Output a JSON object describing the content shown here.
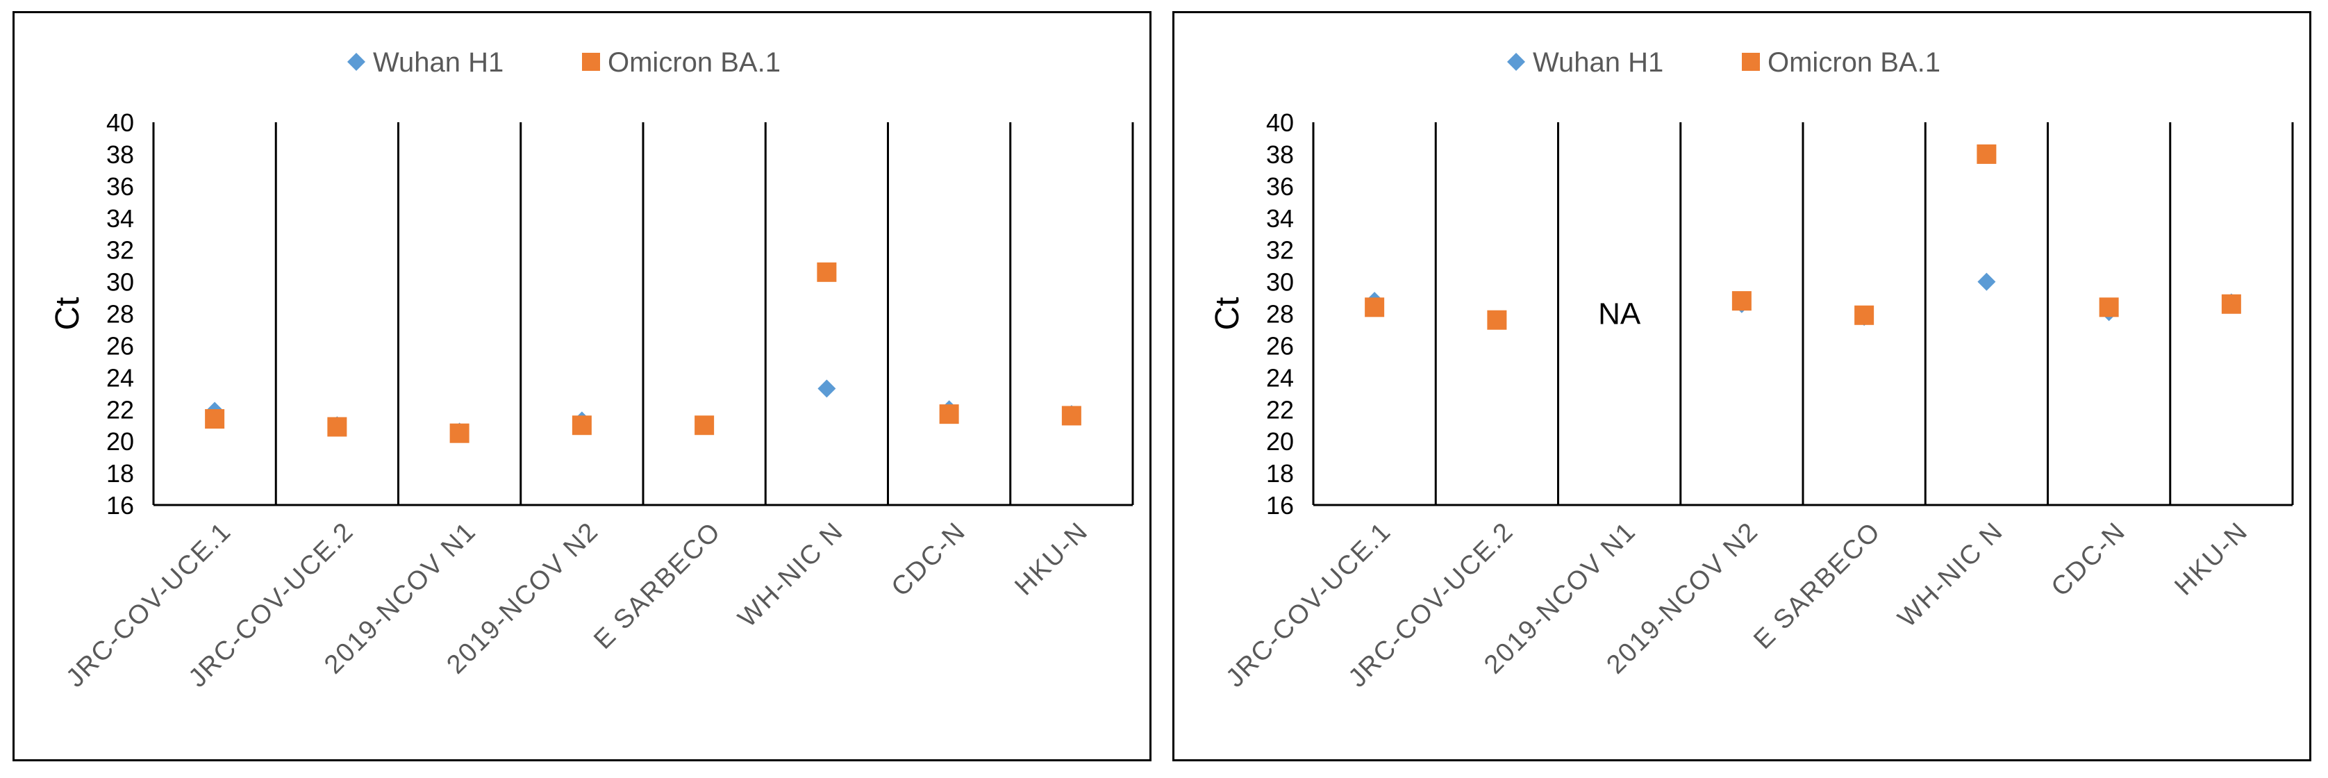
{
  "chart_data": [
    {
      "type": "scatter",
      "title": "",
      "xlabel": "",
      "ylabel": "Ct",
      "ylim": [
        16,
        40
      ],
      "ytick_step": 2,
      "grid": false,
      "legend_position": "top",
      "categories": [
        "JRC-COV-UCE.1",
        "JRC-COV-UCE.2",
        "2019-NCOV N1",
        "2019-NCOV N2",
        "E SARBECO",
        "WH-NIC N",
        "CDC-N",
        "HKU-N"
      ],
      "series": [
        {
          "name": "Wuhan H1",
          "marker": "diamond",
          "color": "#5B9BD5",
          "values": [
            21.9,
            21.0,
            20.6,
            21.3,
            21.0,
            23.3,
            22.0,
            21.7
          ]
        },
        {
          "name": "Omicron BA.1",
          "marker": "square",
          "color": "#ED7D31",
          "values": [
            21.4,
            20.9,
            20.5,
            21.0,
            21.0,
            30.6,
            21.7,
            21.6
          ]
        }
      ],
      "annotations": []
    },
    {
      "type": "scatter",
      "title": "",
      "xlabel": "",
      "ylabel": "Ct",
      "ylim": [
        16,
        40
      ],
      "ytick_step": 2,
      "grid": false,
      "legend_position": "top",
      "categories": [
        "JRC-COV-UCE.1",
        "JRC-COV-UCE.2",
        "2019-NCOV N1",
        "2019-NCOV N2",
        "E SARBECO",
        "WH-NIC N",
        "CDC-N",
        "HKU-N"
      ],
      "series": [
        {
          "name": "Wuhan H1",
          "marker": "diamond",
          "color": "#5B9BD5",
          "values": [
            28.8,
            27.6,
            null,
            28.6,
            27.8,
            30.0,
            28.1,
            28.7
          ]
        },
        {
          "name": "Omicron BA.1",
          "marker": "square",
          "color": "#ED7D31",
          "values": [
            28.4,
            27.6,
            null,
            28.8,
            27.9,
            38.0,
            28.4,
            28.6
          ]
        }
      ],
      "annotations": [
        {
          "category": "2019-NCOV N1",
          "y": 28,
          "text": "NA"
        }
      ]
    }
  ]
}
